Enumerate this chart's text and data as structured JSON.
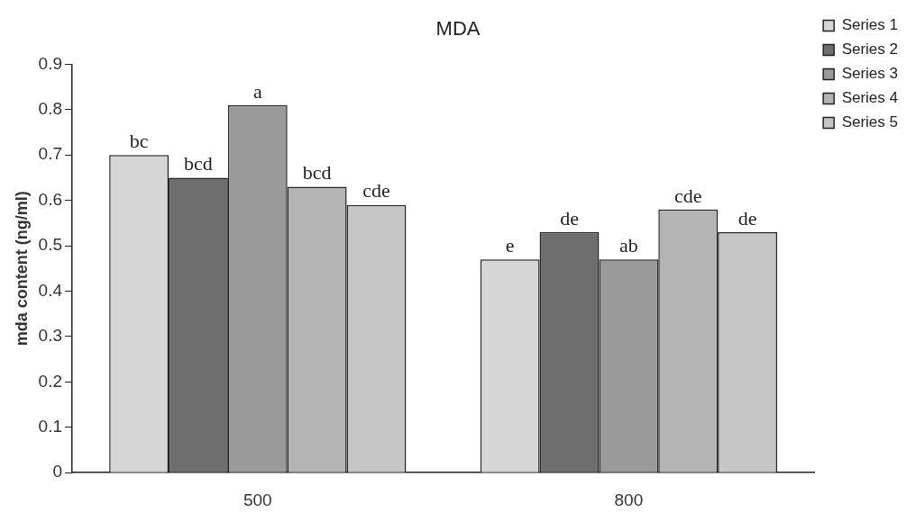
{
  "chart_data": {
    "type": "bar",
    "title": "MDA",
    "ylabel": "mda content (ng/ml)",
    "categories": [
      "500",
      "800"
    ],
    "series": [
      {
        "name": "Series 1",
        "color": "#d6d6d6",
        "values": [
          0.7,
          0.47
        ],
        "value_labels": [
          "bc",
          "e"
        ]
      },
      {
        "name": "Series 2",
        "color": "#6e6e6e",
        "values": [
          0.65,
          0.53
        ],
        "value_labels": [
          "bcd",
          "de"
        ]
      },
      {
        "name": "Series 3",
        "color": "#9a9a9a",
        "values": [
          0.81,
          0.47
        ],
        "value_labels": [
          "a",
          "ab"
        ]
      },
      {
        "name": "Series 4",
        "color": "#b4b4b4",
        "values": [
          0.63,
          0.58
        ],
        "value_labels": [
          "bcd",
          "cde"
        ]
      },
      {
        "name": "Series 5",
        "color": "#c6c6c6",
        "values": [
          0.59,
          0.53
        ],
        "value_labels": [
          "cde",
          "de"
        ]
      }
    ],
    "ylim": [
      0,
      0.9
    ],
    "yticks": [
      0,
      0.1,
      0.2,
      0.3,
      0.4,
      0.5,
      0.6,
      0.7,
      0.8,
      0.9
    ],
    "grid": false,
    "legend": "top right"
  }
}
